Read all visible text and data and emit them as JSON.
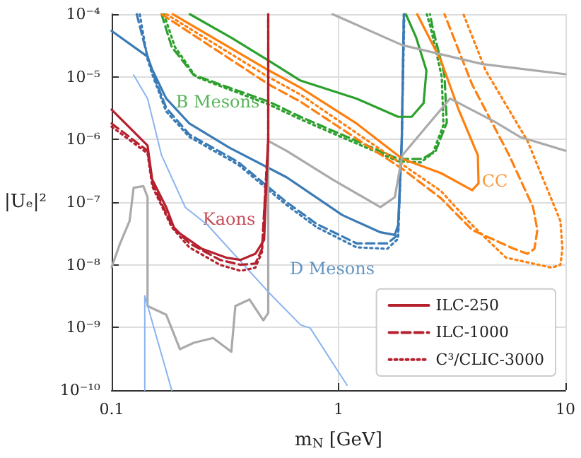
{
  "chart_data": {
    "type": "line",
    "xlabel": "m$_{N}$ [GeV]",
    "ylabel": "|Uₑ|²",
    "log": "xy",
    "grid": true,
    "marker": "none",
    "legend": "bottom right",
    "xlim": [
      0.1,
      10
    ],
    "xticks": [
      0.1,
      1,
      10
    ],
    "ylim": [
      1e-10,
      0.0001
    ],
    "yticks": [
      {
        "value": 1e-10,
        "label": "10⁻¹⁰"
      },
      {
        "value": 1e-09,
        "label": "10⁻⁹"
      },
      {
        "value": 1e-08,
        "label": "10⁻⁸"
      },
      {
        "value": 1e-07,
        "label": "10⁻⁷"
      },
      {
        "value": 1e-06,
        "label": "10⁻⁶"
      },
      {
        "value": 1e-05,
        "label": "10⁻⁵"
      },
      {
        "value": 0.0001,
        "label": "10⁻⁴"
      }
    ],
    "annotations": [
      "Kaons",
      "D Mesons",
      "B Mesons",
      "CC"
    ],
    "series": [
      {
        "name": "ILC-250",
        "color": "#b5202e",
        "line_style": "solid",
        "x": [
          0.1,
          0.144,
          0.151,
          0.174,
          0.19,
          0.25,
          0.32,
          0.37,
          0.43,
          0.47,
          0.49,
          0.49
        ],
        "values": [
          3e-06,
          8e-07,
          2.3e-07,
          8.3e-08,
          3.6e-08,
          1.8e-08,
          1.3e-08,
          1.2e-08,
          1.5e-08,
          2.5e-08,
          1e-06,
          0.0001
        ]
      },
      {
        "name": "ILC-1000",
        "color": "#b5202e",
        "line_style": "dashed",
        "x": [
          0.1,
          0.144,
          0.151,
          0.184,
          0.22,
          0.3,
          0.37,
          0.43,
          0.46,
          0.49,
          0.49
        ],
        "values": [
          1.8e-06,
          6.6e-07,
          2e-07,
          4.3e-08,
          2.2e-08,
          1.2e-08,
          1e-08,
          1.05e-08,
          1.8e-08,
          1e-06,
          0.0001
        ]
      },
      {
        "name": "C³/CLIC-3000",
        "color": "#b5202e",
        "line_style": "dotted",
        "x": [
          0.1,
          0.144,
          0.151,
          0.184,
          0.22,
          0.3,
          0.37,
          0.43,
          0.46,
          0.49,
          0.49
        ],
        "values": [
          1.6e-06,
          6e-07,
          1.8e-07,
          4e-08,
          1.9e-08,
          1e-08,
          8e-09,
          9e-09,
          1.6e-08,
          1e-06,
          0.0001
        ]
      },
      {
        "color": "#3b7bb5",
        "line_style": "solid",
        "x": [
          0.1,
          0.144,
          0.151,
          0.174,
          0.22,
          0.33,
          0.59,
          1.04,
          1.53,
          1.77,
          1.83,
          1.9,
          1.94
        ],
        "values": [
          5.4e-05,
          2.1e-05,
          1.3e-05,
          4.5e-06,
          1.8e-06,
          7.4e-07,
          2.5e-07,
          6.2e-08,
          3.3e-08,
          3e-08,
          4.3e-08,
          1e-06,
          0.0001
        ]
      },
      {
        "color": "#3b7bb5",
        "line_style": "dashed",
        "x": [
          0.129,
          0.144,
          0.151,
          0.174,
          0.22,
          0.36,
          0.59,
          0.8,
          1.2,
          1.64,
          1.83,
          1.9,
          1.94
        ],
        "values": [
          0.0001,
          2.1e-05,
          1.2e-05,
          3.2e-06,
          1.2e-06,
          4.4e-07,
          1e-07,
          4.5e-08,
          2.2e-08,
          2.2e-08,
          3e-08,
          1e-06,
          0.0001
        ]
      },
      {
        "color": "#3b7bb5",
        "line_style": "dotted",
        "x": [
          0.133,
          0.144,
          0.151,
          0.174,
          0.22,
          0.36,
          0.59,
          0.8,
          1.2,
          1.64,
          1.83,
          1.9,
          1.95
        ],
        "values": [
          0.0001,
          1.9e-05,
          1.1e-05,
          2.8e-06,
          1.1e-06,
          4e-07,
          9e-08,
          4e-08,
          1.9e-08,
          1.8e-08,
          2.6e-08,
          1e-06,
          0.0001
        ]
      },
      {
        "color": "#2ca02c",
        "line_style": "solid",
        "x": [
          0.221,
          0.337,
          0.494,
          0.68,
          1.2,
          1.83,
          2.1,
          2.37,
          2.44,
          2.2,
          1.98
        ],
        "values": [
          0.0001,
          4.2e-05,
          1.8e-05,
          8.7e-06,
          4.5e-06,
          2.3e-06,
          2.3e-06,
          3.8e-06,
          1.26e-05,
          4.2e-05,
          0.0001
        ]
      },
      {
        "color": "#2ca02c",
        "line_style": "dashed",
        "x": [
          0.166,
          0.184,
          0.23,
          0.494,
          0.68,
          1.09,
          1.83,
          2.34,
          2.68,
          3.0,
          2.93,
          2.6,
          2.53
        ],
        "values": [
          0.0001,
          3e-05,
          1.07e-05,
          4e-06,
          2.3e-06,
          1.1e-06,
          4.9e-07,
          4.9e-07,
          6.6e-07,
          1.86e-06,
          1.07e-05,
          6e-05,
          0.0001
        ]
      },
      {
        "color": "#2ca02c",
        "line_style": "dotted",
        "x": [
          0.17,
          0.19,
          0.235,
          0.494,
          0.68,
          1.09,
          1.83,
          2.3,
          2.6,
          2.9,
          2.85,
          2.55,
          2.45
        ],
        "values": [
          0.0001,
          3e-05,
          1e-05,
          3.6e-06,
          2.1e-06,
          1e-06,
          4.5e-07,
          4.3e-07,
          6e-07,
          1.7e-06,
          1e-05,
          6e-05,
          0.0001
        ]
      },
      {
        "color": "#ff7f0e",
        "line_style": "solid",
        "x": [
          0.186,
          0.494,
          0.68,
          1.2,
          1.91,
          2.83,
          3.88,
          4.14,
          4.11,
          3.37,
          2.83,
          2.22
        ],
        "values": [
          0.0001,
          1.26e-05,
          6.7e-06,
          1.8e-06,
          4.9e-07,
          2.9e-07,
          1.55e-07,
          2e-07,
          5.6e-07,
          3.1e-06,
          1.8e-05,
          0.0001
        ]
      },
      {
        "color": "#ff7f0e",
        "line_style": "dashed",
        "x": [
          0.166,
          0.494,
          0.68,
          1.91,
          2.83,
          3.88,
          5.93,
          6.8,
          7.3,
          7.52,
          7.2,
          5.65,
          3.88,
          2.93
        ],
        "values": [
          0.0001,
          7.5e-06,
          4e-06,
          3.4e-07,
          1.15e-07,
          3.6e-08,
          1.8e-08,
          1.5e-08,
          1.8e-08,
          3.6e-08,
          8.3e-08,
          5.6e-07,
          7.5e-06,
          0.0001
        ]
      },
      {
        "color": "#ff7f0e",
        "line_style": "dotted",
        "x": [
          0.174,
          0.494,
          0.68,
          1.91,
          2.83,
          3.88,
          5.47,
          8.7,
          9.5,
          9.7,
          9.5,
          6.8,
          4.45,
          3.55
        ],
        "values": [
          0.0001,
          9.8e-06,
          5.2e-06,
          4e-07,
          1.5e-07,
          4.3e-08,
          1.3e-08,
          9e-09,
          1e-08,
          1.8e-08,
          5e-08,
          9.5e-07,
          1.26e-05,
          0.0001
        ]
      },
      {
        "color": "#aaaaaa",
        "line_style": "solid",
        "x": [
          0.1,
          0.109,
          0.12,
          0.125,
          0.138,
          0.144,
          0.144,
          0.174,
          0.2,
          0.23,
          0.28,
          0.337,
          0.351,
          0.405,
          0.466,
          0.49,
          0.49,
          0.59,
          0.94,
          1.53,
          1.77,
          1.91,
          3.1,
          4.9,
          6.3,
          10
        ],
        "values": [
          9.1e-09,
          2.2e-08,
          5e-08,
          1.7e-07,
          1.8e-07,
          1.2e-07,
          2.2e-09,
          1.6e-09,
          4.5e-10,
          5.7e-10,
          6.8e-10,
          4.1e-10,
          2.2e-09,
          2.8e-09,
          1.3e-09,
          1.7e-09,
          9.5e-07,
          6.6e-07,
          2.3e-07,
          8.3e-08,
          1.2e-07,
          5.6e-07,
          4.5e-06,
          1.9e-06,
          1.1e-06,
          6.6e-07
        ]
      },
      {
        "color": "#aaaaaa",
        "line_style": "solid",
        "x": [
          0.94,
          1.91,
          4.3,
          10
        ],
        "values": [
          0.0001,
          3.2e-05,
          1.6e-05,
          1.1e-05
        ]
      },
      {
        "color": "#8ab4f0",
        "line_style": "solid",
        "x": [
          0.125,
          0.144,
          0.166,
          0.211,
          0.265,
          0.49,
          0.68,
          0.75,
          1.09
        ],
        "values": [
          1.07e-05,
          4.5e-06,
          5.6e-07,
          8.3e-08,
          4.3e-08,
          3.7e-09,
          1.1e-09,
          9.8e-10,
          1.2e-10
        ]
      },
      {
        "color": "#8ab4f0",
        "line_style": "solid",
        "x": [
          0.14,
          0.14,
          0.184
        ],
        "values": [
          1e-10,
          3.2e-09,
          1e-10
        ]
      }
    ]
  }
}
